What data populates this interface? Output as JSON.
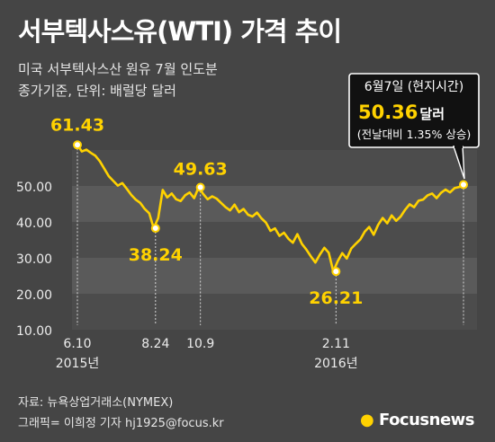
{
  "header": {
    "title": "서부텍사스유(WTI) 가격 추이",
    "subtitle_line1": "미국 서부텍사스산 원유 7월 인도분",
    "subtitle_line2": "종가기준, 단위: 배럴당 달러"
  },
  "callout": {
    "date": "6월7일 (현지시간)",
    "value": "50.36",
    "unit": "달러",
    "change": "(전날대비 1.35% 상승)"
  },
  "footer": {
    "source": "자료: 뉴욕상업거래소(NYMEX)",
    "credit": "그래픽= 이희정 기자 hj1925@focus.kr",
    "logo": "Focusnews"
  },
  "colors": {
    "background": "#454545",
    "line": "#ffd200",
    "band_light": "#5a5a5a",
    "band_dark": "#4c4c4c"
  },
  "chart_data": {
    "type": "line",
    "ylim": [
      10,
      60
    ],
    "yticks": [
      "10.00",
      "20.00",
      "30.00",
      "40.00",
      "50.00"
    ],
    "x_labels": [
      {
        "label": "6.10",
        "year": "2015년",
        "idx": 0
      },
      {
        "label": "8.24",
        "year": "",
        "idx": 17.4
      },
      {
        "label": "10.9",
        "year": "",
        "idx": 27.4
      },
      {
        "label": "2.11",
        "year": "2016년",
        "idx": 57.6
      },
      {
        "label": "",
        "year": "",
        "idx": 86
      }
    ],
    "annotations": [
      {
        "label": "61.43",
        "idx": 0,
        "value": 61.43
      },
      {
        "label": "38.24",
        "idx": 17.4,
        "value": 38.24
      },
      {
        "label": "49.63",
        "idx": 27.4,
        "value": 49.63
      },
      {
        "label": "26.21",
        "idx": 57.6,
        "value": 26.21
      },
      {
        "label": "50.36",
        "idx": 86,
        "value": 50.36
      }
    ],
    "values": [
      61.43,
      59.6,
      60.1,
      59.2,
      58.4,
      56.9,
      54.8,
      52.7,
      51.4,
      50.1,
      50.8,
      49.2,
      47.5,
      46.2,
      45.3,
      43.6,
      42.4,
      38.24,
      41.1,
      48.9,
      46.8,
      47.9,
      46.3,
      45.8,
      47.4,
      48.2,
      46.6,
      49.63,
      47.8,
      46.3,
      47.1,
      46.5,
      45.3,
      44.1,
      43.2,
      44.8,
      42.7,
      43.6,
      42.0,
      41.5,
      42.6,
      41.0,
      39.8,
      37.5,
      38.2,
      36.1,
      37.0,
      35.3,
      34.2,
      36.6,
      33.9,
      32.3,
      30.4,
      28.7,
      30.9,
      32.8,
      31.4,
      26.21,
      29.1,
      31.3,
      29.8,
      32.6,
      33.9,
      35.1,
      37.3,
      38.6,
      36.4,
      39.2,
      41.1,
      39.6,
      41.8,
      40.3,
      41.5,
      43.4,
      44.9,
      44.1,
      45.9,
      46.2,
      47.4,
      47.9,
      46.6,
      48.1,
      49.0,
      48.2,
      49.4,
      49.7,
      50.36
    ]
  }
}
